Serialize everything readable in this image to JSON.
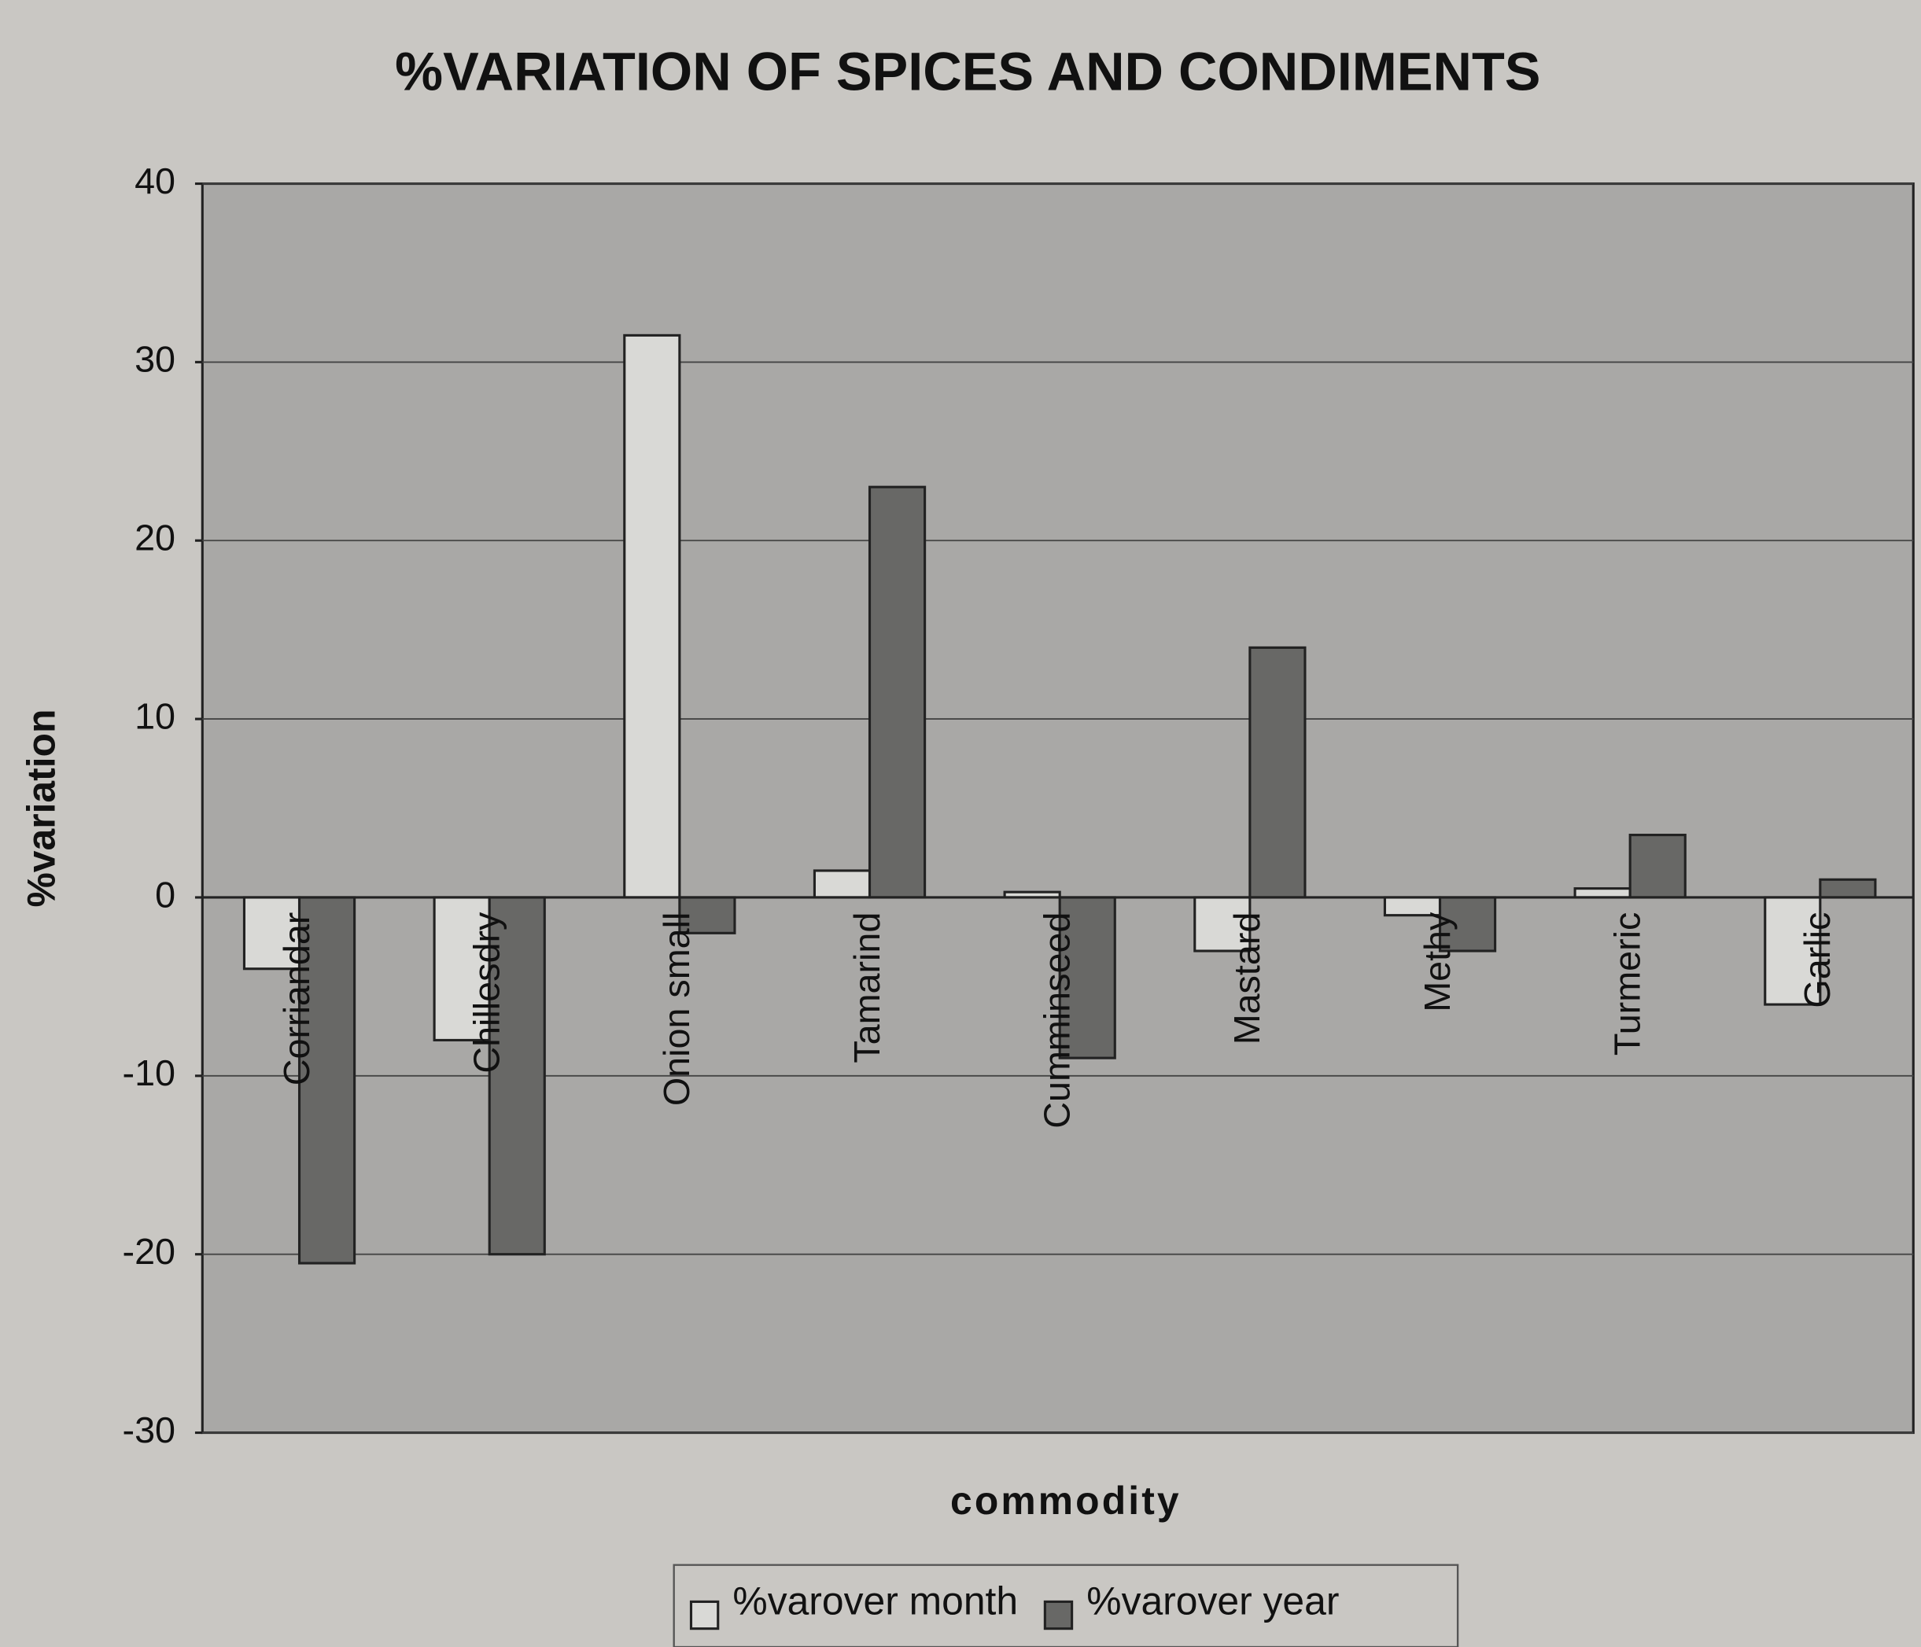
{
  "chart_data": {
    "type": "bar",
    "title": "%VARIATION OF SPICES AND CONDIMENTS",
    "y_label": "%variation",
    "x_label": "commodity",
    "categories": [
      "Corriandar",
      "Chillesdry",
      "Onion small",
      "Tamarind",
      "Cumminseed",
      "Mastard",
      "Methy",
      "Turmeric",
      "Garlic"
    ],
    "series": [
      {
        "name": "%varover month",
        "color": "#d9d9d6",
        "values": [
          -4,
          -8,
          31.5,
          1.5,
          0.3,
          -3,
          -1,
          0.5,
          -6
        ]
      },
      {
        "name": "%varover year",
        "color": "#686866",
        "values": [
          -20.5,
          -20,
          -2,
          23,
          -9,
          14,
          -3,
          3.5,
          1
        ]
      }
    ],
    "ylim": [
      -30,
      40
    ],
    "yticks": [
      -30,
      -20,
      -10,
      0,
      10,
      20,
      30,
      40
    ],
    "grid": true,
    "legend": "bottom",
    "plot_color": "#a9a8a6"
  }
}
